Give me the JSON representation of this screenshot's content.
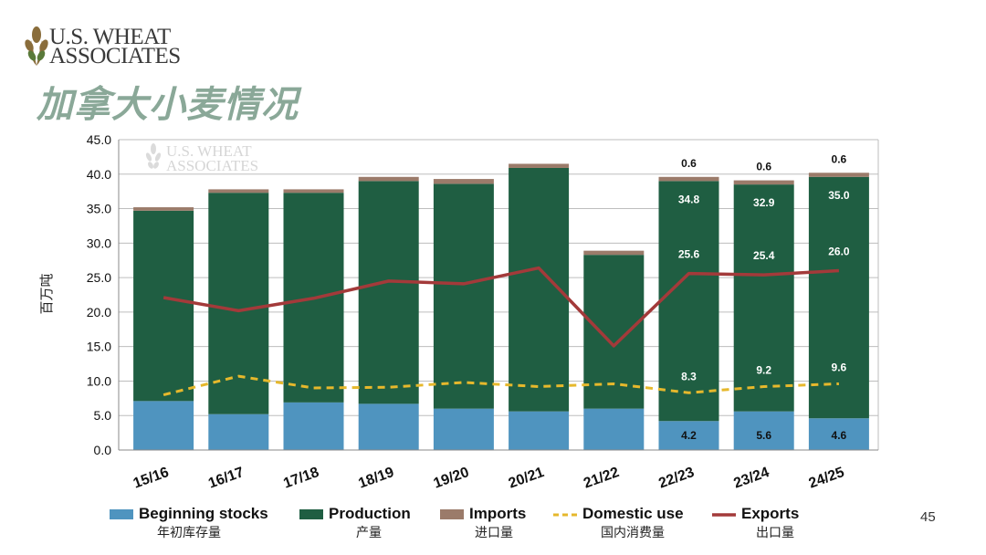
{
  "logo": {
    "line1": "U.S. WHEAT",
    "line2": "ASSOCIATES"
  },
  "slide_title": "加拿大小麦情况",
  "page_number": "45",
  "colors": {
    "beginning_stocks": "#4f94bf",
    "production": "#1f5e42",
    "imports": "#9b7b6a",
    "domestic_use": "#e6b82c",
    "exports": "#a33a3a",
    "title": "#8aa898"
  },
  "chart_data": {
    "type": "bar",
    "stacked": true,
    "ylabel": "百万吨",
    "ylim": [
      0,
      45
    ],
    "yticks": [
      "0.0",
      "5.0",
      "10.0",
      "15.0",
      "20.0",
      "25.0",
      "30.0",
      "35.0",
      "40.0",
      "45.0"
    ],
    "grid": true,
    "categories": [
      "15/16",
      "16/17",
      "17/18",
      "18/19",
      "19/20",
      "20/21",
      "21/22",
      "22/23",
      "23/24",
      "24/25"
    ],
    "series": [
      {
        "name": "Beginning stocks",
        "name_cn": "年初库存量",
        "kind": "bar",
        "values": [
          7.1,
          5.2,
          6.9,
          6.7,
          6.0,
          5.6,
          6.0,
          4.2,
          5.6,
          4.6
        ]
      },
      {
        "name": "Production",
        "name_cn": "产量",
        "kind": "bar",
        "values": [
          27.6,
          32.1,
          30.4,
          32.3,
          32.6,
          35.3,
          22.3,
          34.8,
          32.9,
          35.0
        ]
      },
      {
        "name": "Imports",
        "name_cn": "进口量",
        "kind": "bar",
        "values": [
          0.5,
          0.5,
          0.5,
          0.6,
          0.7,
          0.6,
          0.6,
          0.6,
          0.6,
          0.6
        ]
      },
      {
        "name": "Domestic use",
        "name_cn": "国内消费量",
        "kind": "line",
        "dashed": true,
        "values": [
          8.0,
          10.7,
          9.0,
          9.1,
          9.8,
          9.2,
          9.6,
          8.3,
          9.2,
          9.6
        ]
      },
      {
        "name": "Exports",
        "name_cn": "出口量",
        "kind": "line",
        "values": [
          22.1,
          20.2,
          22.0,
          24.5,
          24.1,
          26.4,
          15.1,
          25.6,
          25.4,
          26.0
        ]
      }
    ],
    "data_labels": [
      {
        "category": "22/23",
        "series": "Imports",
        "text": "0.6"
      },
      {
        "category": "23/24",
        "series": "Imports",
        "text": "0.6"
      },
      {
        "category": "24/25",
        "series": "Imports",
        "text": "0.6"
      },
      {
        "category": "22/23",
        "series": "Production",
        "text": "34.8"
      },
      {
        "category": "23/24",
        "series": "Production",
        "text": "32.9"
      },
      {
        "category": "24/25",
        "series": "Production",
        "text": "35.0"
      },
      {
        "category": "22/23",
        "series": "Exports",
        "text": "25.6"
      },
      {
        "category": "23/24",
        "series": "Exports",
        "text": "25.4"
      },
      {
        "category": "24/25",
        "series": "Exports",
        "text": "26.0"
      },
      {
        "category": "22/23",
        "series": "Domestic use",
        "text": "8.3"
      },
      {
        "category": "23/24",
        "series": "Domestic use",
        "text": "9.2"
      },
      {
        "category": "24/25",
        "series": "Domestic use",
        "text": "9.6"
      },
      {
        "category": "22/23",
        "series": "Beginning stocks",
        "text": "4.2"
      },
      {
        "category": "23/24",
        "series": "Beginning stocks",
        "text": "5.6"
      },
      {
        "category": "24/25",
        "series": "Beginning stocks",
        "text": "4.6"
      }
    ],
    "watermark": {
      "line1": "U.S. WHEAT",
      "line2": "ASSOCIATES"
    }
  }
}
